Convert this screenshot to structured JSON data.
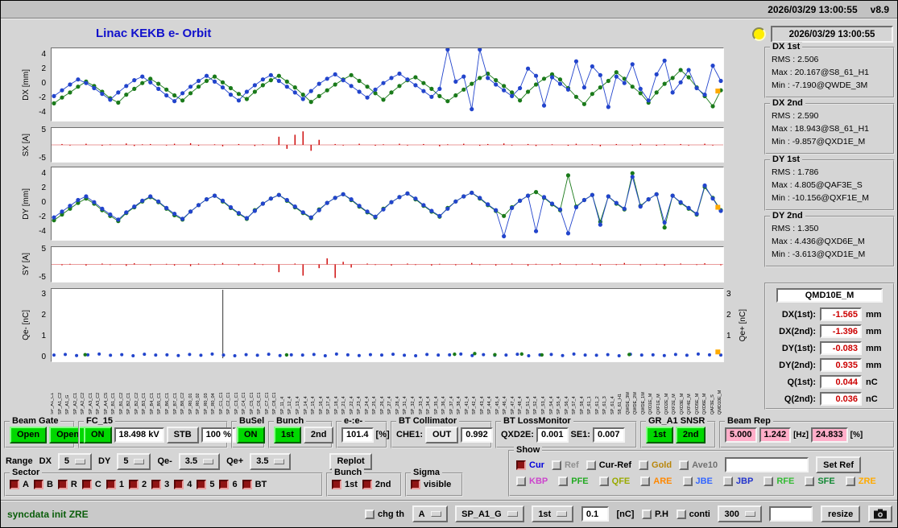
{
  "topbar": {
    "datetime": "2026/03/29 13:00:55",
    "version": "v8.9"
  },
  "title": "Linac KEKB e- Orbit",
  "status_panel": {
    "timestamp": "2026/03/29 13:00:55",
    "labels": {
      "rms": "RMS :",
      "max": "Max :",
      "min": "Min :"
    },
    "groups": [
      {
        "title": "DX 1st",
        "rms": "2.506",
        "max": "20.167@S8_61_H1",
        "min": "-7.190@QWDE_3M"
      },
      {
        "title": "DX 2nd",
        "rms": "2.590",
        "max": "18.943@S8_61_H1",
        "min": "-9.857@QXD1E_M"
      },
      {
        "title": "DY 1st",
        "rms": "1.786",
        "max": "4.805@QAF3E_S",
        "min": "-10.156@QXF1E_M"
      },
      {
        "title": "DY 2nd",
        "rms": "1.350",
        "max": "4.436@QXD6E_M",
        "min": "-3.613@QXD1E_M"
      }
    ]
  },
  "monitor": {
    "name": "QMD10E_M",
    "rows": [
      {
        "label": "DX(1st):",
        "value": "-1.565",
        "unit": "mm"
      },
      {
        "label": "DX(2nd):",
        "value": "-1.396",
        "unit": "mm"
      },
      {
        "label": "DY(1st):",
        "value": "-0.083",
        "unit": "mm"
      },
      {
        "label": "DY(2nd):",
        "value": "0.935",
        "unit": "mm"
      },
      {
        "label": "Q(1st):",
        "value": "0.044",
        "unit": "nC"
      },
      {
        "label": "Q(2nd):",
        "value": "0.036",
        "unit": "nC"
      }
    ]
  },
  "row1": {
    "beam_gate": {
      "title": "Beam Gate",
      "b1": "Open",
      "b2": "Open"
    },
    "fc15": {
      "title": "FC_15",
      "on": "ON",
      "kv": "18.498 kV",
      "stb": "STB",
      "pct": "100 %"
    },
    "busel": {
      "title": "BuSel",
      "on": "ON"
    },
    "bunch": {
      "title": "Bunch",
      "b1": "1st",
      "b2": "2nd"
    },
    "ee": {
      "title": "e-:e-",
      "value": "101.4",
      "unit": "[%]"
    },
    "bt_collimator": {
      "title": "BT Collimator",
      "che1_label": "CHE1:",
      "che1_state": "OUT",
      "value": "0.992"
    },
    "bt_lossmonitor": {
      "title": "BT LossMonitor",
      "qxd2e_label": "QXD2E:",
      "qxd2e": "0.001",
      "se1_label": "SE1:",
      "se1": "0.007"
    },
    "gr_snsr": {
      "title": "GR_A1 SNSR",
      "b1": "1st",
      "b2": "2nd"
    },
    "beam_rep": {
      "title": "Beam Rep",
      "v1": "5.000",
      "v2": "1.242",
      "hz": "[Hz]",
      "v3": "24.833",
      "pct": "[%]"
    }
  },
  "range_row": {
    "range_label": "Range",
    "dx_label": "DX",
    "dx": "5",
    "dy_label": "DY",
    "dy": "5",
    "qem_label": "Qe-",
    "qem": "3.5",
    "qep_label": "Qe+",
    "qep": "3.5",
    "replot": "Replot"
  },
  "show_panel": {
    "title": "Show",
    "row1": [
      {
        "label": "Cur",
        "color": "#0000dd",
        "checked": true
      },
      {
        "label": "Ref",
        "color": "#909090",
        "checked": false
      },
      {
        "label": "Cur-Ref",
        "color": "#000000",
        "checked": false
      },
      {
        "label": "Gold",
        "color": "#b8860b",
        "checked": false
      },
      {
        "label": "Ave10",
        "color": "#707070",
        "checked": false
      }
    ],
    "set_ref_input": "",
    "set_ref": "Set Ref",
    "row2": [
      {
        "label": "KBP",
        "color": "#cc44cc",
        "checked": false
      },
      {
        "label": "PFE",
        "color": "#22aa22",
        "checked": false
      },
      {
        "label": "QFE",
        "color": "#99aa00",
        "checked": false
      },
      {
        "label": "ARE",
        "color": "#ff8800",
        "checked": false
      },
      {
        "label": "JBE",
        "color": "#3366ff",
        "checked": false
      },
      {
        "label": "JBP",
        "color": "#2233cc",
        "checked": false
      },
      {
        "label": "RFE",
        "color": "#33bb33",
        "checked": false
      },
      {
        "label": "SFE",
        "color": "#118833",
        "checked": false
      },
      {
        "label": "ZRE",
        "color": "#ffaa00",
        "checked": false
      }
    ]
  },
  "sector": {
    "title": "Sector",
    "items": [
      {
        "label": "A",
        "checked": true
      },
      {
        "label": "B",
        "checked": true
      },
      {
        "label": "R",
        "checked": true
      },
      {
        "label": "C",
        "checked": true
      },
      {
        "label": "1",
        "checked": true
      },
      {
        "label": "2",
        "checked": true
      },
      {
        "label": "3",
        "checked": true
      },
      {
        "label": "4",
        "checked": true
      },
      {
        "label": "5",
        "checked": true
      },
      {
        "label": "6",
        "checked": true
      },
      {
        "label": "BT",
        "checked": true
      }
    ]
  },
  "bunch_sel": {
    "title": "Bunch",
    "items": [
      {
        "label": "1st",
        "checked": true
      },
      {
        "label": "2nd",
        "checked": true
      }
    ]
  },
  "sigma": {
    "title": "Sigma",
    "label": "visible",
    "checked": true
  },
  "statusbar": {
    "message": "syncdata init ZRE",
    "chg_th": "chg th",
    "opt_a": "A",
    "opt_sp": "SP_A1_G",
    "opt_1st": "1st",
    "thr": "0.1",
    "thr_unit": "[nC]",
    "ph": "P.H",
    "conti": "conti",
    "interval": "300",
    "aux": "",
    "resize": "resize"
  },
  "plots": {
    "dx": {
      "ylabel": "DX [mm]",
      "ymin": -5,
      "ymax": 5,
      "ticks": [
        4,
        2,
        0,
        -2,
        -4
      ],
      "series": [
        {
          "color": "#1a7a1a",
          "dot": 2.6,
          "line": true,
          "values": [
            -2.6,
            -1.8,
            -1.1,
            -0.3,
            0.4,
            -0.2,
            -1.0,
            -1.9,
            -2.5,
            -1.4,
            -0.6,
            0.2,
            0.8,
            0.1,
            -0.7,
            -1.5,
            -2.2,
            -1.2,
            -0.3,
            0.5,
            1.1,
            0.3,
            -0.5,
            -1.3,
            -2.0,
            -1.0,
            -0.1,
            0.6,
            1.2,
            0.4,
            -0.4,
            -1.4,
            -2.4,
            -1.6,
            -0.8,
            0.0,
            0.7,
            1.3,
            0.5,
            -0.3,
            -1.2,
            -2.1,
            -1.1,
            -0.2,
            0.6,
            1.0,
            0.2,
            -0.6,
            -1.6,
            -2.3,
            -1.5,
            -0.7,
            0.1,
            0.9,
            1.5,
            0.6,
            -0.2,
            -1.1,
            -2.2,
            -1.0,
            0.0,
            0.8,
            1.4,
            0.7,
            -0.5,
            -1.7,
            -2.7,
            -1.3,
            -0.4,
            0.5,
            1.7,
            0.8,
            -0.3,
            -1.2,
            -2.5,
            -1.1,
            0.1,
            0.9,
            2.0,
            1.0,
            -0.4,
            -1.6,
            -3.0,
            -0.8
          ]
        },
        {
          "color": "#2244cc",
          "dot": 2.6,
          "line": true,
          "values": [
            -1.6,
            -0.8,
            0.0,
            0.7,
            0.2,
            -0.5,
            -1.3,
            -2.1,
            -1.1,
            -0.2,
            0.6,
            1.1,
            0.3,
            -0.6,
            -1.5,
            -2.3,
            -1.2,
            -0.3,
            0.5,
            1.2,
            0.4,
            -0.4,
            -1.4,
            -2.2,
            -1.0,
            -0.1,
            0.7,
            1.3,
            0.5,
            -0.3,
            -1.1,
            -2.0,
            -0.9,
            0.1,
            0.8,
            1.4,
            0.6,
            -0.2,
            -1.0,
            -1.8,
            -0.7,
            0.2,
            0.9,
            1.5,
            0.7,
            -0.1,
            -0.9,
            -1.7,
            -0.6,
            8.5,
            0.4,
            1.1,
            -3.4,
            8.0,
            0.9,
            0.0,
            -0.8,
            -1.6,
            -0.5,
            2.2,
            1.2,
            -2.9,
            1.0,
            0.1,
            -0.7,
            3.2,
            -0.4,
            2.5,
            1.3,
            -3.1,
            1.1,
            0.2,
            2.8,
            -0.6,
            -2.2,
            1.4,
            3.3,
            -1.1,
            0.3,
            2.0,
            -0.5,
            -1.4,
            2.6,
            0.5
          ]
        }
      ],
      "marker": {
        "frac": 0.992,
        "value": -0.9,
        "color": "#ffaa00"
      }
    },
    "sx": {
      "ylabel": "SX [A]",
      "ymin": -6,
      "ymax": 6,
      "ticks": [
        5,
        -5
      ],
      "bars": {
        "color": "#cc0000",
        "values": [
          0,
          0.3,
          -0.2,
          0,
          0.4,
          0,
          -0.3,
          0.2,
          0,
          0.5,
          -0.4,
          0.2,
          0.3,
          0,
          -0.2,
          0.4,
          0,
          0.6,
          -0.3,
          0,
          0.2,
          -0.5,
          0,
          0.3,
          0,
          -0.4,
          0.2,
          0,
          2.9,
          -1.4,
          3.6,
          4.8,
          -2.1,
          1.8,
          0,
          0.3,
          -0.2,
          0,
          0.4,
          0,
          -0.3,
          0.2,
          0,
          0.4,
          -0.2,
          0,
          0.3,
          0,
          -0.5,
          0.2,
          0,
          0.4,
          0,
          -0.3,
          0.3,
          0,
          0.5,
          -0.2,
          0,
          0.3,
          -0.4,
          0,
          0.2,
          0,
          -0.3,
          0.4,
          0,
          0.2,
          -0.5,
          0,
          0.3,
          0,
          -0.2,
          0.4,
          0,
          -0.3,
          0.2,
          0,
          0.3,
          -0.2,
          0,
          0.4,
          -0.2,
          0
        ]
      }
    },
    "dy": {
      "ylabel": "DY [mm]",
      "ymin": -5,
      "ymax": 5,
      "ticks": [
        4,
        2,
        0,
        -2,
        -4
      ],
      "series": [
        {
          "color": "#1a7a1a",
          "dot": 2.6,
          "line": true,
          "values": [
            -2.3,
            -1.5,
            -0.7,
            0.1,
            0.7,
            0.0,
            -0.9,
            -1.7,
            -2.4,
            -1.3,
            -0.5,
            0.3,
            0.9,
            0.2,
            -0.7,
            -1.6,
            -2.2,
            -1.1,
            -0.2,
            0.6,
            1.1,
            0.3,
            -0.6,
            -1.4,
            -2.1,
            -0.9,
            0.0,
            0.7,
            1.2,
            0.4,
            -0.5,
            -1.3,
            -2.0,
            -0.8,
            0.1,
            0.8,
            1.3,
            0.5,
            -0.4,
            -1.2,
            -1.9,
            -0.7,
            0.2,
            0.9,
            1.4,
            0.6,
            -0.3,
            -1.1,
            -1.8,
            -0.6,
            0.3,
            1.0,
            1.5,
            0.7,
            -0.2,
            -1.0,
            -1.7,
            -0.5,
            0.4,
            1.1,
            1.6,
            0.8,
            -0.1,
            -0.9,
            3.9,
            -0.4,
            0.5,
            1.2,
            -2.5,
            1.0,
            0.0,
            -0.8,
            4.2,
            -0.3,
            0.6,
            1.3,
            -3.3,
            1.1,
            0.1,
            -0.7,
            -1.5,
            2.3,
            0.8,
            -0.9
          ]
        },
        {
          "color": "#2244cc",
          "dot": 2.6,
          "line": true,
          "values": [
            -1.9,
            -1.1,
            -0.3,
            0.5,
            1.0,
            0.2,
            -0.7,
            -1.5,
            -2.2,
            -1.2,
            -0.4,
            0.4,
            1.0,
            0.3,
            -0.6,
            -1.4,
            -2.1,
            -1.1,
            -0.2,
            0.6,
            1.1,
            0.4,
            -0.5,
            -1.3,
            -2.0,
            -1.0,
            0.0,
            0.7,
            1.2,
            0.5,
            -0.4,
            -1.2,
            -1.9,
            -0.9,
            0.1,
            0.8,
            1.3,
            0.6,
            -0.3,
            -1.1,
            -1.8,
            -0.8,
            0.2,
            0.9,
            1.4,
            0.7,
            -0.2,
            -1.0,
            -1.7,
            -0.7,
            0.3,
            1.0,
            1.5,
            0.8,
            -0.1,
            -0.9,
            -4.5,
            -0.6,
            0.4,
            1.1,
            -3.8,
            0.9,
            0.0,
            -0.8,
            -4.1,
            -0.5,
            0.5,
            1.2,
            -2.9,
            1.0,
            0.1,
            -0.7,
            3.7,
            -0.4,
            0.6,
            1.3,
            -2.6,
            1.1,
            0.2,
            -0.6,
            -1.4,
            2.5,
            0.7,
            -1.0
          ]
        }
      ],
      "marker": {
        "frac": 0.992,
        "value": -0.5,
        "color": "#ffaa00"
      }
    },
    "sy": {
      "ylabel": "SY [A]",
      "ymin": -6,
      "ymax": 6,
      "ticks": [
        5,
        -5
      ],
      "bars": {
        "color": "#cc0000",
        "values": [
          0,
          -0.3,
          0.2,
          0,
          -0.4,
          0,
          0.3,
          -0.2,
          0,
          -0.5,
          0.4,
          0,
          -0.3,
          0,
          0.2,
          -0.4,
          0,
          -0.6,
          0.3,
          0,
          -0.2,
          0.5,
          0,
          -0.3,
          0,
          0.4,
          -0.2,
          0,
          -2.7,
          0,
          0.3,
          -3.9,
          0,
          -1.3,
          2.1,
          -4.7,
          0.9,
          -1.1,
          0,
          0.3,
          -0.2,
          0,
          -0.4,
          0,
          0.3,
          -0.2,
          0,
          -0.4,
          0.2,
          0,
          -0.3,
          0,
          0.5,
          -0.2,
          0,
          -0.4,
          0,
          0.3,
          0,
          -0.5,
          0.2,
          0,
          -0.3,
          0.4,
          0,
          -0.2,
          0,
          0.3,
          -0.4,
          0,
          -0.2,
          0.5,
          0,
          -0.3,
          0,
          0.2,
          -0.4,
          0,
          0.3,
          0,
          -0.2,
          0.4,
          0,
          -0.3
        ]
      }
    },
    "qe": {
      "ylabel": "Qe- [nC]",
      "ylabel_right": "Qe+ [nC]",
      "ymin": -0.15,
      "ymax": 3.3,
      "ticks": [
        3,
        2,
        1,
        0
      ],
      "ticks_right": [
        3,
        2,
        1
      ],
      "series": [
        {
          "color": "#2244cc",
          "dot": 2.0,
          "line": false,
          "values": [
            0.15,
            0.18,
            0.13,
            0.16,
            0.2,
            0.14,
            0.17,
            0.12,
            0.19,
            0.15,
            0.16,
            0.13,
            0.18,
            0.14,
            0.2,
            0.15,
            0.12,
            0.17,
            0.14,
            0.19,
            0.13,
            0.16,
            0.15,
            0.18,
            0.12,
            0.2,
            0.16,
            0.13,
            0.17,
            0.15,
            0.19,
            0.14,
            0.12,
            0.18,
            0.15,
            0.16,
            0.2,
            0.13,
            0.17,
            0.14,
            0.15,
            0.19,
            0.12,
            0.16,
            0.18,
            0.13,
            0.2,
            0.15,
            0.14,
            0.17,
            0.12,
            0.19,
            0.15,
            0.16,
            0.13,
            0.18,
            0.14,
            0.2,
            0.16,
            0.15
          ]
        }
      ],
      "points": [
        {
          "frac": 0.05,
          "value": 0.17,
          "color": "#1a7a1a"
        },
        {
          "frac": 0.35,
          "value": 0.16,
          "color": "#1a7a1a"
        },
        {
          "frac": 0.6,
          "value": 0.19,
          "color": "#1a7a1a"
        },
        {
          "frac": 0.63,
          "value": 0.22,
          "color": "#1a7a1a"
        },
        {
          "frac": 0.66,
          "value": 0.17,
          "color": "#1a7a1a"
        },
        {
          "frac": 0.7,
          "value": 0.2,
          "color": "#1a7a1a"
        },
        {
          "frac": 0.73,
          "value": 0.16,
          "color": "#1a7a1a"
        },
        {
          "frac": 0.86,
          "value": 0.18,
          "color": "#1a7a1a"
        }
      ],
      "spikes": [
        0.255
      ],
      "marker": {
        "frac": 0.992,
        "value": 0.3,
        "color": "#ffaa00"
      }
    }
  },
  "xlabels": [
    "SP_A1_C1",
    "SP_A1_C2",
    "SP_A1_G",
    "SP_A2_C1",
    "SP_A2_C2",
    "SP_A3_C1",
    "SP_A3_C2",
    "SP_A4_C5",
    "SP_B1_C1",
    "SP_B1_C2",
    "SP_B2_C1",
    "SP_B2_C2",
    "SP_B3_C1",
    "SP_B4_C1",
    "SP_B5_C1",
    "SP_B6_C1",
    "SP_B7_C1",
    "SP_B8_C2",
    "SP_R0_01",
    "SP_R0_02",
    "SP_R0_03",
    "SP_R0_04",
    "SP_C1_C1",
    "SP_C2_C1",
    "SP_C3_C1",
    "SP_C4_C1",
    "SP_C5_C1",
    "SP_C6_C1",
    "SP_C7_C1",
    "SP_C8_C1",
    "SP_11_4",
    "SP_12_4",
    "SP_13_4",
    "SP_14_4",
    "SP_15_4",
    "SP_16_4",
    "SP_17_4",
    "SP_18_4",
    "SP_21_4",
    "SP_22_4",
    "SP_23_4",
    "SP_24_4",
    "SP_25_4",
    "SP_26_4",
    "SP_27_4",
    "SP_28_4",
    "SP_31_4",
    "SP_32_4",
    "SP_33_4",
    "SP_34_4",
    "SP_35_4",
    "SP_36_4",
    "SP_37_4",
    "SP_38_4",
    "SP_41_4",
    "SP_42_4",
    "SP_43_4",
    "SP_44_4",
    "SP_45_4",
    "SP_46_4",
    "SP_47_4",
    "SP_48_4",
    "SP_51_4",
    "SP_52_4",
    "SP_53_4",
    "SP_54_4",
    "SP_55_4",
    "SP_56_4",
    "SP_57_4",
    "SP_58_4",
    "SP_61_1",
    "SP_61_2",
    "SP_61_3",
    "SP_61_4",
    "S8_61_H1",
    "QWDE_3M",
    "QWDE_2M",
    "QWDE_1M",
    "QXD1E_M",
    "QXF1E_M",
    "QXD2E_M",
    "QXF2E_M",
    "QXD3E_M",
    "QXF4E_M",
    "QXD5E_M",
    "QXD6E_M",
    "QAF3E_S",
    "QMD10E_M"
  ]
}
